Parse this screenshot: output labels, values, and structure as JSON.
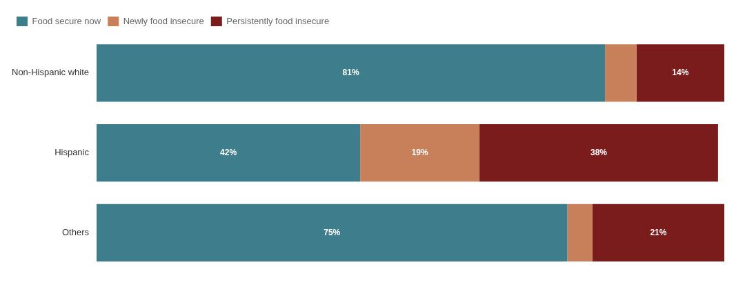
{
  "chart_data": {
    "type": "bar",
    "orientation": "horizontal",
    "stacked": true,
    "categories": [
      "Non-Hispanic white",
      "Hispanic",
      "Others"
    ],
    "series": [
      {
        "name": "Food secure now",
        "color": "#3e7d8b",
        "values": [
          81,
          42,
          75
        ],
        "value_labels": [
          "81%",
          "42%",
          "75%"
        ]
      },
      {
        "name": "Newly food insecure",
        "color": "#c8805a",
        "values": [
          5,
          19,
          4
        ],
        "value_labels": [
          null,
          "19%",
          null
        ]
      },
      {
        "name": "Persistently food insecure",
        "color": "#7a1c1c",
        "values": [
          14,
          38,
          21
        ],
        "value_labels": [
          "14%",
          "38%",
          "21%"
        ]
      }
    ],
    "xlim": [
      0,
      100
    ],
    "data_labels": true,
    "tick_labels": "y",
    "grid": false,
    "legend": "top-left"
  }
}
